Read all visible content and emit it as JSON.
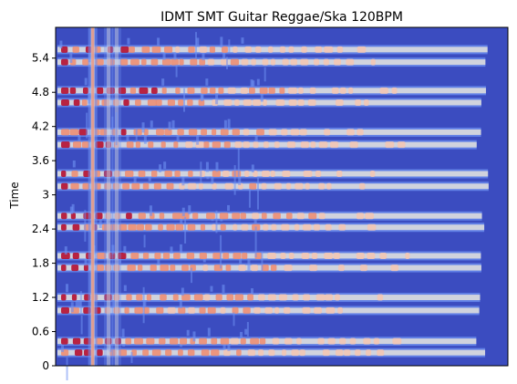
{
  "chart_data": {
    "type": "heatmap",
    "title": "IDMT SMT Guitar Reggae/Ska 120BPM",
    "xlabel": "",
    "ylabel": "Time",
    "x_ticks": [],
    "y_ticks": [
      "0",
      "0.6",
      "1.2",
      "1.8",
      "2.4",
      "3",
      "3.6",
      "4.2",
      "4.8",
      "5.4"
    ],
    "y_tick_values": [
      0,
      0.6,
      1.2,
      1.8,
      2.4,
      3.0,
      3.6,
      4.2,
      4.8,
      5.4
    ],
    "ylim": [
      0,
      5.94
    ],
    "colormap": "coolwarm",
    "colors": {
      "background": "#3b4cc0",
      "low": "#6f92f3",
      "mid": "#dddcdc",
      "high": "#f08b6e",
      "peak": "#b40426"
    },
    "bands": [
      {
        "time": 0.23,
        "strength": 0.82
      },
      {
        "time": 0.43,
        "strength": 0.88
      },
      {
        "time": 0.97,
        "strength": 0.8
      },
      {
        "time": 1.2,
        "strength": 0.86
      },
      {
        "time": 1.72,
        "strength": 0.84
      },
      {
        "time": 1.93,
        "strength": 0.9
      },
      {
        "time": 2.43,
        "strength": 0.86
      },
      {
        "time": 2.63,
        "strength": 0.93
      },
      {
        "time": 3.15,
        "strength": 0.78
      },
      {
        "time": 3.37,
        "strength": 0.84
      },
      {
        "time": 3.88,
        "strength": 0.82
      },
      {
        "time": 4.1,
        "strength": 0.86
      },
      {
        "time": 4.62,
        "strength": 0.84
      },
      {
        "time": 4.83,
        "strength": 0.9
      },
      {
        "time": 5.33,
        "strength": 0.82
      },
      {
        "time": 5.55,
        "strength": 0.84
      }
    ],
    "vertical_lines": [
      {
        "x": 0.082,
        "strength": 0.95
      },
      {
        "x": 0.117,
        "strength": 0.55
      },
      {
        "x": 0.135,
        "strength": 0.5
      }
    ]
  }
}
